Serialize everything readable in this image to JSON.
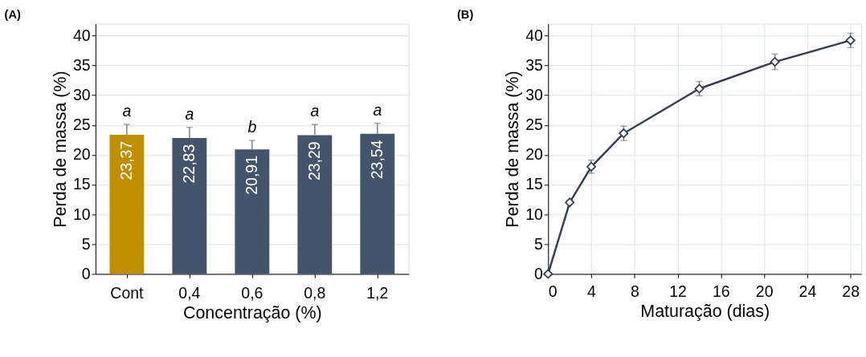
{
  "chart_data": [
    {
      "type": "bar",
      "title": "(A)",
      "xlabel": "Concentração (%)",
      "ylabel": "Perda de massa (%)",
      "categories": [
        "Cont",
        "0,4",
        "0,6",
        "0,8",
        "1,2"
      ],
      "values": [
        23.37,
        22.83,
        20.91,
        23.29,
        23.54
      ],
      "colors": [
        "#bf8f00",
        "#44546a",
        "#44546a",
        "#44546a",
        "#44546a"
      ],
      "value_labels": [
        "23,37",
        "22,83",
        "20,91",
        "23,29",
        "23,54"
      ],
      "errors": [
        [
          23.37,
          25.1
        ],
        [
          22.83,
          24.6
        ],
        [
          20.91,
          22.4
        ],
        [
          23.29,
          25.1
        ],
        [
          23.54,
          25.3
        ]
      ],
      "annotations": [
        "a",
        "a",
        "b",
        "a",
        "a"
      ],
      "ylim": [
        0,
        42
      ],
      "yticks": [
        0,
        5,
        10,
        15,
        20,
        25,
        30,
        35,
        40
      ],
      "grid": "y"
    },
    {
      "type": "line",
      "title": "(B)",
      "xlabel": "Maturação (dias)",
      "ylabel": "Perda de massa (%)",
      "x": [
        0,
        2,
        4,
        7,
        14,
        21,
        28
      ],
      "series": [
        {
          "color": "#333f50",
          "values": [
            0,
            12,
            18,
            23.6,
            31.1,
            35.6,
            39.2
          ],
          "errors": [
            null,
            null,
            1.1,
            1.2,
            1.2,
            1.3,
            1.2
          ]
        }
      ],
      "marker": "diamond",
      "line_style": "solid",
      "xlim": [
        0,
        29
      ],
      "xticks": [
        0,
        4,
        8,
        12,
        16,
        20,
        24,
        28
      ],
      "ylim": [
        0,
        42
      ],
      "yticks": [
        0,
        5,
        10,
        15,
        20,
        25,
        30,
        35,
        40
      ],
      "grid": true
    }
  ]
}
